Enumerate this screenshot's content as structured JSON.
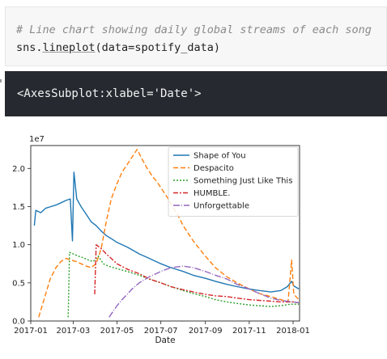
{
  "code_cell": {
    "comment": "# Line chart showing daily global streams of each song",
    "code_prefix": "sns.",
    "code_func": "lineplot",
    "code_suffix": "(data=spotify_data)"
  },
  "output_cell": {
    "text": "<AxesSubplot:xlabel='Date'>"
  },
  "chart_data": {
    "type": "line",
    "xlabel": "Date",
    "ylabel": "",
    "y_offset_label": "1e7",
    "ylim": [
      0,
      2.3
    ],
    "xlim": [
      "2017-01-01",
      "2018-01-10"
    ],
    "x_ticks": [
      "2017-01",
      "2017-03",
      "2017-05",
      "2017-07",
      "2017-09",
      "2017-11",
      "2018-01"
    ],
    "y_ticks": [
      "0.0",
      "0.5",
      "1.0",
      "1.5",
      "2.0"
    ],
    "legend_position": "top-right",
    "grid": false,
    "series": [
      {
        "name": "Shape of You",
        "color": "#1f77b4",
        "dash": "",
        "points": [
          [
            "2017-01-06",
            1.25
          ],
          [
            "2017-01-08",
            1.45
          ],
          [
            "2017-01-15",
            1.42
          ],
          [
            "2017-01-22",
            1.48
          ],
          [
            "2017-01-29",
            1.5
          ],
          [
            "2017-02-05",
            1.52
          ],
          [
            "2017-02-12",
            1.55
          ],
          [
            "2017-02-19",
            1.58
          ],
          [
            "2017-02-25",
            1.6
          ],
          [
            "2017-02-28",
            1.05
          ],
          [
            "2017-03-02",
            1.95
          ],
          [
            "2017-03-06",
            1.6
          ],
          [
            "2017-03-12",
            1.5
          ],
          [
            "2017-03-19",
            1.4
          ],
          [
            "2017-03-26",
            1.3
          ],
          [
            "2017-04-02",
            1.25
          ],
          [
            "2017-04-09",
            1.18
          ],
          [
            "2017-04-16",
            1.12
          ],
          [
            "2017-04-23",
            1.08
          ],
          [
            "2017-05-01",
            1.03
          ],
          [
            "2017-05-15",
            0.97
          ],
          [
            "2017-06-01",
            0.88
          ],
          [
            "2017-06-15",
            0.82
          ],
          [
            "2017-07-01",
            0.75
          ],
          [
            "2017-07-15",
            0.7
          ],
          [
            "2017-08-01",
            0.65
          ],
          [
            "2017-08-15",
            0.6
          ],
          [
            "2017-09-01",
            0.56
          ],
          [
            "2017-09-15",
            0.52
          ],
          [
            "2017-10-01",
            0.48
          ],
          [
            "2017-10-15",
            0.45
          ],
          [
            "2017-11-01",
            0.42
          ],
          [
            "2017-11-15",
            0.4
          ],
          [
            "2017-12-01",
            0.38
          ],
          [
            "2017-12-15",
            0.4
          ],
          [
            "2017-12-24",
            0.45
          ],
          [
            "2017-12-30",
            0.52
          ],
          [
            "2018-01-02",
            0.46
          ],
          [
            "2018-01-09",
            0.42
          ]
        ]
      },
      {
        "name": "Despacito",
        "color": "#ff7f0e",
        "dash": "6,3",
        "points": [
          [
            "2017-01-12",
            0.05
          ],
          [
            "2017-01-20",
            0.3
          ],
          [
            "2017-01-28",
            0.55
          ],
          [
            "2017-02-05",
            0.7
          ],
          [
            "2017-02-12",
            0.78
          ],
          [
            "2017-02-19",
            0.82
          ],
          [
            "2017-02-26",
            0.8
          ],
          [
            "2017-03-05",
            0.78
          ],
          [
            "2017-03-12",
            0.75
          ],
          [
            "2017-03-19",
            0.72
          ],
          [
            "2017-03-26",
            0.7
          ],
          [
            "2017-04-02",
            0.75
          ],
          [
            "2017-04-09",
            0.95
          ],
          [
            "2017-04-16",
            1.3
          ],
          [
            "2017-04-23",
            1.6
          ],
          [
            "2017-05-01",
            1.8
          ],
          [
            "2017-05-08",
            1.95
          ],
          [
            "2017-05-15",
            2.05
          ],
          [
            "2017-05-22",
            2.15
          ],
          [
            "2017-05-29",
            2.25
          ],
          [
            "2017-06-05",
            2.12
          ],
          [
            "2017-06-12",
            2.0
          ],
          [
            "2017-06-19",
            1.9
          ],
          [
            "2017-06-26",
            1.82
          ],
          [
            "2017-07-03",
            1.72
          ],
          [
            "2017-07-10",
            1.62
          ],
          [
            "2017-07-17",
            1.5
          ],
          [
            "2017-07-24",
            1.4
          ],
          [
            "2017-08-01",
            1.25
          ],
          [
            "2017-08-15",
            1.05
          ],
          [
            "2017-09-01",
            0.85
          ],
          [
            "2017-09-15",
            0.7
          ],
          [
            "2017-10-01",
            0.58
          ],
          [
            "2017-10-15",
            0.5
          ],
          [
            "2017-11-01",
            0.42
          ],
          [
            "2017-11-15",
            0.36
          ],
          [
            "2017-12-01",
            0.32
          ],
          [
            "2017-12-15",
            0.28
          ],
          [
            "2017-12-25",
            0.25
          ],
          [
            "2017-12-30",
            0.8
          ],
          [
            "2018-01-02",
            0.35
          ],
          [
            "2018-01-09",
            0.28
          ]
        ]
      },
      {
        "name": "Something Just Like This",
        "color": "#2ca02c",
        "dash": "2,2",
        "points": [
          [
            "2017-02-22",
            0.05
          ],
          [
            "2017-02-24",
            0.9
          ],
          [
            "2017-03-01",
            0.88
          ],
          [
            "2017-03-08",
            0.85
          ],
          [
            "2017-03-15",
            0.83
          ],
          [
            "2017-03-22",
            0.8
          ],
          [
            "2017-03-29",
            0.78
          ],
          [
            "2017-04-05",
            0.85
          ],
          [
            "2017-04-12",
            0.75
          ],
          [
            "2017-04-19",
            0.72
          ],
          [
            "2017-04-26",
            0.7
          ],
          [
            "2017-05-03",
            0.68
          ],
          [
            "2017-05-15",
            0.65
          ],
          [
            "2017-06-01",
            0.6
          ],
          [
            "2017-06-15",
            0.55
          ],
          [
            "2017-07-01",
            0.5
          ],
          [
            "2017-07-15",
            0.45
          ],
          [
            "2017-08-01",
            0.4
          ],
          [
            "2017-08-15",
            0.36
          ],
          [
            "2017-09-01",
            0.32
          ],
          [
            "2017-09-15",
            0.28
          ],
          [
            "2017-10-01",
            0.25
          ],
          [
            "2017-10-15",
            0.23
          ],
          [
            "2017-11-01",
            0.21
          ],
          [
            "2017-11-15",
            0.2
          ],
          [
            "2017-12-01",
            0.19
          ],
          [
            "2017-12-15",
            0.2
          ],
          [
            "2017-12-28",
            0.22
          ],
          [
            "2018-01-09",
            0.22
          ]
        ]
      },
      {
        "name": "HUMBLE.",
        "color": "#d62728",
        "dash": "6,2,2,2",
        "points": [
          [
            "2017-03-31",
            0.35
          ],
          [
            "2017-04-02",
            1.0
          ],
          [
            "2017-04-09",
            0.95
          ],
          [
            "2017-04-16",
            0.88
          ],
          [
            "2017-04-23",
            0.82
          ],
          [
            "2017-05-01",
            0.75
          ],
          [
            "2017-05-15",
            0.68
          ],
          [
            "2017-06-01",
            0.62
          ],
          [
            "2017-06-15",
            0.55
          ],
          [
            "2017-07-01",
            0.5
          ],
          [
            "2017-07-15",
            0.45
          ],
          [
            "2017-08-01",
            0.41
          ],
          [
            "2017-08-15",
            0.38
          ],
          [
            "2017-09-01",
            0.35
          ],
          [
            "2017-09-15",
            0.33
          ],
          [
            "2017-10-01",
            0.32
          ],
          [
            "2017-10-15",
            0.3
          ],
          [
            "2017-11-01",
            0.28
          ],
          [
            "2017-11-15",
            0.27
          ],
          [
            "2017-12-01",
            0.26
          ],
          [
            "2017-12-15",
            0.25
          ],
          [
            "2018-01-01",
            0.25
          ],
          [
            "2018-01-09",
            0.24
          ]
        ]
      },
      {
        "name": "Unforgettable",
        "color": "#9467bd",
        "dash": "8,2,1,2",
        "points": [
          [
            "2017-04-20",
            0.05
          ],
          [
            "2017-04-25",
            0.12
          ],
          [
            "2017-05-01",
            0.2
          ],
          [
            "2017-05-08",
            0.28
          ],
          [
            "2017-05-15",
            0.35
          ],
          [
            "2017-05-22",
            0.42
          ],
          [
            "2017-06-01",
            0.5
          ],
          [
            "2017-06-15",
            0.58
          ],
          [
            "2017-07-01",
            0.65
          ],
          [
            "2017-07-15",
            0.7
          ],
          [
            "2017-08-01",
            0.72
          ],
          [
            "2017-08-15",
            0.7
          ],
          [
            "2017-09-01",
            0.65
          ],
          [
            "2017-09-15",
            0.6
          ],
          [
            "2017-10-01",
            0.55
          ],
          [
            "2017-10-15",
            0.48
          ],
          [
            "2017-11-01",
            0.42
          ],
          [
            "2017-11-15",
            0.36
          ],
          [
            "2017-12-01",
            0.3
          ],
          [
            "2017-12-15",
            0.27
          ],
          [
            "2018-01-01",
            0.25
          ],
          [
            "2018-01-09",
            0.24
          ]
        ]
      }
    ]
  }
}
